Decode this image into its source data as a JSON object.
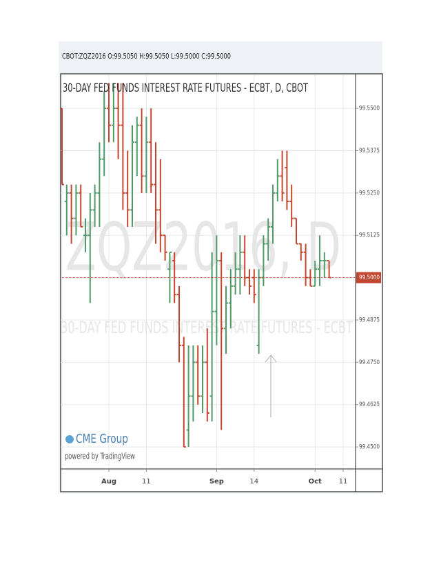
{
  "chart_data": {
    "type": "ohlc",
    "symbol_line": "CBOT:ZQZ2016 O:99.5050 H:99.5050 L:99.5000 C:99.5000",
    "title": "30-DAY FED FUNDS INTEREST RATE FUTURES - ECBT, D, CBOT",
    "watermark": "ZQZ2016, D",
    "watermark_subtitle": "30-DAY FED FUNDS INTEREST RATE FUTURES - ECBT",
    "logo": "CME Group",
    "powered_by": "powered by TradingView",
    "up_color": "#4f9a68",
    "down_color": "#c4452f",
    "grid": true,
    "categories": [
      null,
      null,
      null,
      null,
      null,
      null,
      null,
      null,
      null,
      null,
      "Aug",
      null,
      null,
      null,
      null,
      null,
      null,
      null,
      "11",
      null,
      null,
      null,
      null,
      null,
      null,
      null,
      null,
      null,
      null,
      null,
      null,
      null,
      null,
      "Sep",
      null,
      null,
      null,
      null,
      null,
      null,
      null,
      "14",
      null,
      null,
      null,
      null,
      null,
      null,
      null,
      null,
      null,
      null,
      null,
      null,
      "Oct",
      null,
      null,
      null,
      null,
      null,
      "11"
    ],
    "open": [
      99.55,
      99.5225,
      99.525,
      99.5175,
      99.525,
      99.5125,
      99.5125,
      99.52,
      99.525,
      99.535,
      99.55,
      99.545,
      99.55,
      99.545,
      99.525,
      99.52,
      99.54,
      99.545,
      99.53,
      99.54,
      99.5275,
      99.52,
      99.5125,
      99.5025,
      99.505,
      99.495,
      99.48,
      99.455,
      99.465,
      99.475,
      99.465,
      99.475,
      99.465,
      99.49,
      99.505,
      99.485,
      99.4925,
      99.4975,
      99.5025,
      99.5075,
      99.5,
      99.5,
      99.48,
      99.5,
      99.51,
      99.515,
      99.525,
      99.53,
      99.5325,
      99.5225,
      99.5175,
      99.51,
      99.5075,
      99.5,
      99.4975,
      99.5025,
      99.505,
      99.505,
      null,
      null,
      null
    ],
    "high": [
      99.55,
      99.5275,
      99.5275,
      99.5275,
      99.5275,
      99.5175,
      99.525,
      99.5275,
      99.54,
      99.555,
      99.5575,
      99.5575,
      99.5575,
      99.5575,
      99.5375,
      99.545,
      99.5475,
      99.55,
      99.5475,
      99.55,
      99.54,
      99.535,
      99.5125,
      99.5075,
      99.5075,
      99.4975,
      99.4825,
      99.48,
      99.48,
      99.48,
      99.48,
      99.485,
      99.5075,
      99.5125,
      99.5075,
      99.4975,
      99.5025,
      99.5075,
      99.5125,
      99.5125,
      99.5025,
      99.5025,
      99.5025,
      99.5125,
      99.5175,
      99.5275,
      99.535,
      99.5375,
      99.5375,
      99.5275,
      99.5175,
      99.51,
      99.51,
      99.5025,
      99.505,
      99.5125,
      99.5075,
      99.505,
      null,
      null,
      null
    ],
    "low": [
      99.5275,
      99.5125,
      99.51,
      99.5125,
      99.515,
      99.5075,
      99.4925,
      99.515,
      99.515,
      99.53,
      99.54,
      99.54,
      99.535,
      99.52,
      99.515,
      99.515,
      99.53,
      99.525,
      99.525,
      99.525,
      99.51,
      99.5075,
      99.505,
      99.4925,
      99.4925,
      99.475,
      99.45,
      99.45,
      99.4575,
      99.4625,
      99.46,
      99.4575,
      99.4575,
      99.48,
      99.455,
      99.4775,
      99.485,
      99.495,
      99.495,
      99.4975,
      99.495,
      99.4925,
      99.4775,
      99.4975,
      99.505,
      99.51,
      99.5225,
      99.5225,
      99.52,
      99.515,
      99.51,
      99.505,
      99.4975,
      99.4975,
      99.4975,
      99.4975,
      99.5,
      99.5,
      null,
      null,
      null
    ],
    "close": [
      99.5275,
      99.525,
      99.5175,
      99.525,
      99.515,
      99.5125,
      99.52,
      99.525,
      99.535,
      99.55,
      99.545,
      99.55,
      99.545,
      99.525,
      99.52,
      99.54,
      99.545,
      99.53,
      99.54,
      99.5275,
      99.52,
      99.5125,
      99.5075,
      99.5075,
      99.495,
      99.48,
      99.45,
      99.465,
      99.475,
      99.465,
      99.475,
      99.46,
      99.49,
      99.505,
      99.485,
      99.4925,
      99.4975,
      99.5025,
      99.5075,
      99.5,
      99.4975,
      99.495,
      99.5,
      99.51,
      99.515,
      99.525,
      99.53,
      99.525,
      99.5225,
      99.5175,
      99.51,
      99.5075,
      99.5,
      99.4975,
      99.5025,
      99.505,
      99.505,
      99.5,
      null,
      null,
      null
    ],
    "last_price": {
      "value": 99.5,
      "label": "99.5000"
    },
    "ylim": [
      99.4435,
      99.56
    ],
    "yticks": [
      {
        "value": 99.55,
        "label": "99.5500"
      },
      {
        "value": 99.5375,
        "label": "99.5375"
      },
      {
        "value": 99.525,
        "label": "99.5250"
      },
      {
        "value": 99.5125,
        "label": "99.5125"
      },
      {
        "value": 99.5,
        "label": "99.5000"
      },
      {
        "value": 99.4875,
        "label": "99.4875"
      },
      {
        "value": 99.475,
        "label": "99.4750"
      },
      {
        "value": 99.4625,
        "label": "99.4625"
      },
      {
        "value": 99.45,
        "label": "99.4500"
      }
    ]
  }
}
